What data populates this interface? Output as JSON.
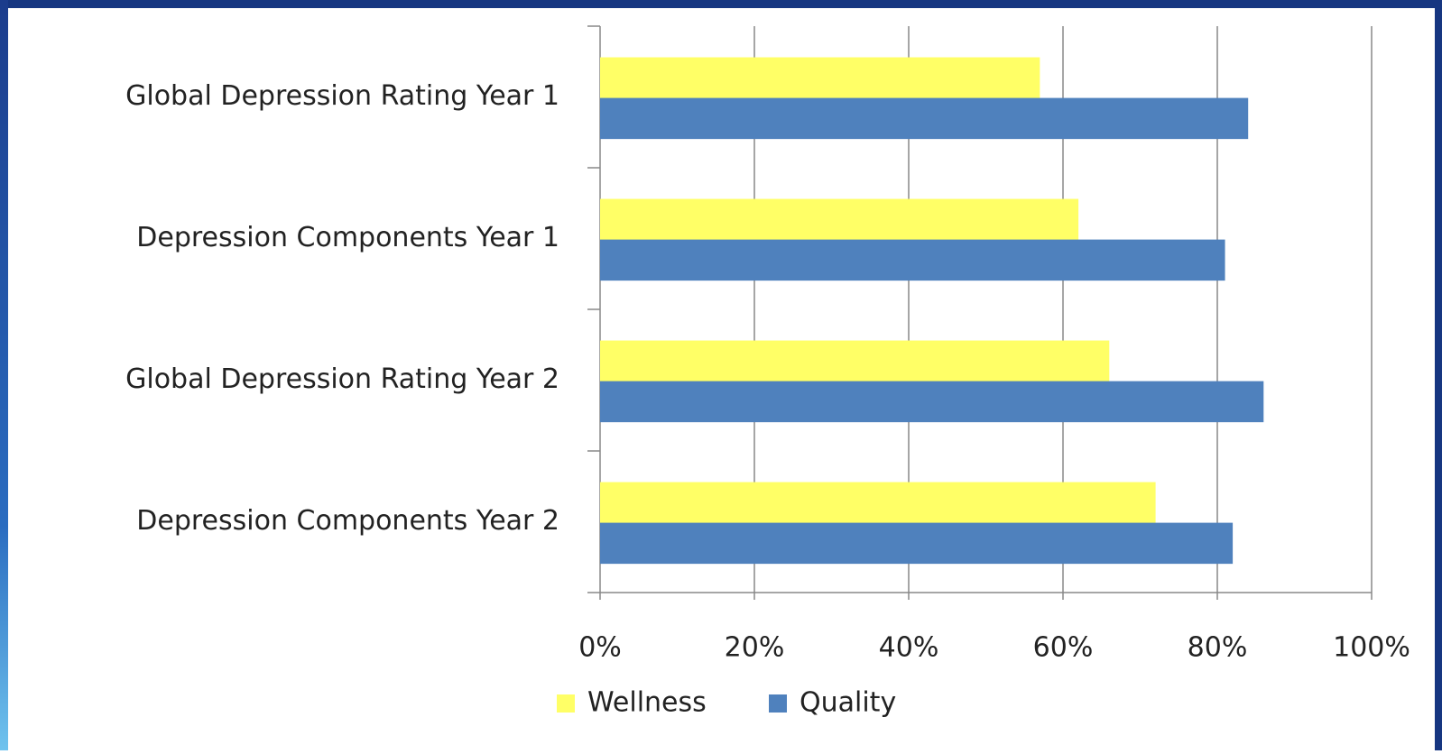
{
  "chart_data": {
    "type": "hbar",
    "categories": [
      "Global Depression  Rating Year 1",
      "Depression Components Year 1",
      "Global Depression  Rating Year 2",
      "Depression Components Year 2"
    ],
    "series": [
      {
        "name": "Wellness",
        "color": "#ffff66",
        "values": [
          57,
          62,
          66,
          72
        ]
      },
      {
        "name": "Quality",
        "color": "#4f81bd",
        "values": [
          84,
          81,
          86,
          82
        ]
      }
    ],
    "xlim": [
      0,
      100
    ],
    "xticks": [
      {
        "value": 0,
        "label": "0%"
      },
      {
        "value": 20,
        "label": "20%"
      },
      {
        "value": 40,
        "label": "40%"
      },
      {
        "value": 60,
        "label": "60%"
      },
      {
        "value": 80,
        "label": "80%"
      },
      {
        "value": 100,
        "label": "100%"
      }
    ],
    "grid": true,
    "legend": "bottom"
  }
}
